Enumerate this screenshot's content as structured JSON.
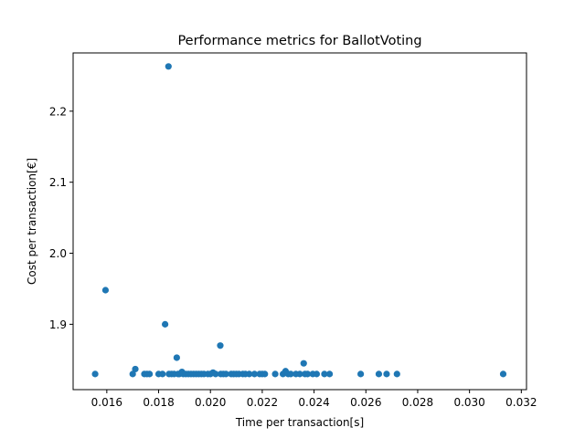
{
  "chart_data": {
    "type": "scatter",
    "title": "Performance metrics for BallotVoting",
    "xlabel": "Time per transaction[s]",
    "ylabel": "Cost per transaction[€]",
    "xlim": [
      0.0147,
      0.0322
    ],
    "ylim": [
      1.808,
      2.282
    ],
    "xticks": [
      0.016,
      0.018,
      0.02,
      0.022,
      0.024,
      0.026,
      0.028,
      0.03,
      0.032
    ],
    "xtick_labels": [
      "0.016",
      "0.018",
      "0.020",
      "0.022",
      "0.024",
      "0.026",
      "0.028",
      "0.030",
      "0.032"
    ],
    "yticks": [
      1.9,
      2.0,
      2.1,
      2.2
    ],
    "ytick_labels": [
      "1.9",
      "2.0",
      "2.1",
      "2.2"
    ],
    "grid": false,
    "color": "#1f77b4",
    "series": [
      {
        "x": [
          0.01555,
          0.01595,
          0.017,
          0.0171,
          0.01745,
          0.01755,
          0.01765,
          0.018,
          0.01815,
          0.01825,
          0.01838,
          0.0184,
          0.0185,
          0.0186,
          0.0187,
          0.01875,
          0.0188,
          0.0189,
          0.01895,
          0.01905,
          0.01915,
          0.01925,
          0.01935,
          0.01945,
          0.01955,
          0.01965,
          0.01975,
          0.0199,
          0.02,
          0.0201,
          0.0202,
          0.02038,
          0.0204,
          0.0205,
          0.0206,
          0.0208,
          0.0209,
          0.021,
          0.0211,
          0.02125,
          0.02135,
          0.0215,
          0.0217,
          0.0219,
          0.022,
          0.0221,
          0.0225,
          0.0228,
          0.0229,
          0.023,
          0.0231,
          0.0233,
          0.02345,
          0.0236,
          0.02365,
          0.02375,
          0.02395,
          0.0241,
          0.0244,
          0.0246,
          0.0258,
          0.0265,
          0.0268,
          0.0272,
          0.0313
        ],
        "y": [
          1.83,
          1.948,
          1.83,
          1.837,
          1.83,
          1.83,
          1.83,
          1.83,
          1.83,
          1.9,
          2.263,
          1.83,
          1.83,
          1.83,
          1.853,
          1.83,
          1.83,
          1.833,
          1.83,
          1.83,
          1.83,
          1.83,
          1.83,
          1.83,
          1.83,
          1.83,
          1.83,
          1.83,
          1.83,
          1.832,
          1.83,
          1.87,
          1.83,
          1.83,
          1.83,
          1.83,
          1.83,
          1.83,
          1.83,
          1.83,
          1.83,
          1.83,
          1.83,
          1.83,
          1.83,
          1.83,
          1.83,
          1.83,
          1.834,
          1.83,
          1.83,
          1.83,
          1.83,
          1.845,
          1.83,
          1.83,
          1.83,
          1.83,
          1.83,
          1.83,
          1.83,
          1.83,
          1.83,
          1.83,
          1.83
        ]
      }
    ]
  }
}
